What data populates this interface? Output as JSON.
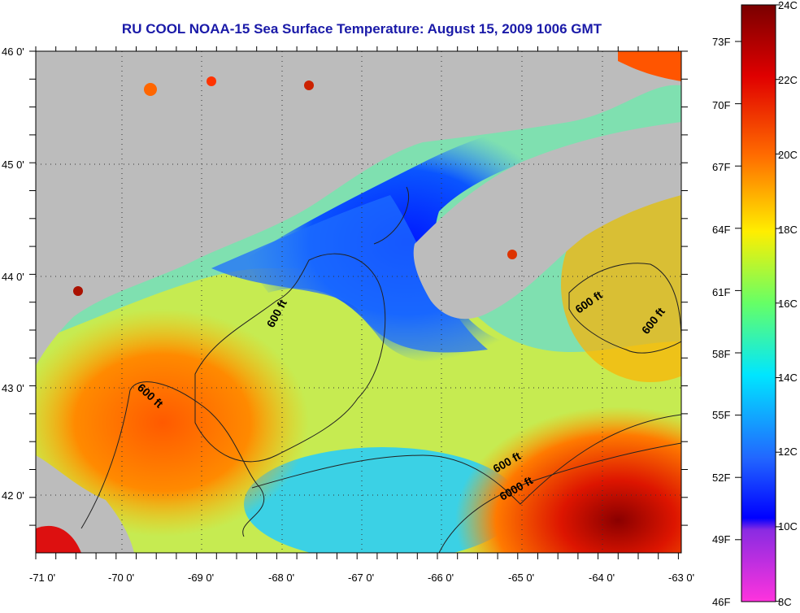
{
  "title": "RU COOL  NOAA-15  Sea Surface Temperature:  August 15, 2009 1006 GMT",
  "colors": {
    "land": "#bcbcbc",
    "title": "#1a1aa8",
    "contour": "#222222"
  },
  "axes": {
    "lat_labels": [
      "46 0'",
      "45 0'",
      "44 0'",
      "43 0'",
      "42 0'"
    ],
    "lon_labels": [
      "-71 0'",
      "-70 0'",
      "-69 0'",
      "-68 0'",
      "-67 0'",
      "-66 0'",
      "-65 0'",
      "-64 0'",
      "-63 0'"
    ]
  },
  "contour_labels": [
    "600 ft",
    "600 ft",
    "600 ft",
    "600 ft",
    "600 ft",
    "6000 ft"
  ],
  "colorbar": {
    "f_labels": [
      "73F",
      "70F",
      "67F",
      "64F",
      "61F",
      "58F",
      "55F",
      "52F",
      "49F",
      "46F"
    ],
    "c_labels": [
      "24C",
      "22C",
      "20C",
      "18C",
      "16C",
      "14C",
      "12C",
      "10C",
      "8C"
    ]
  }
}
